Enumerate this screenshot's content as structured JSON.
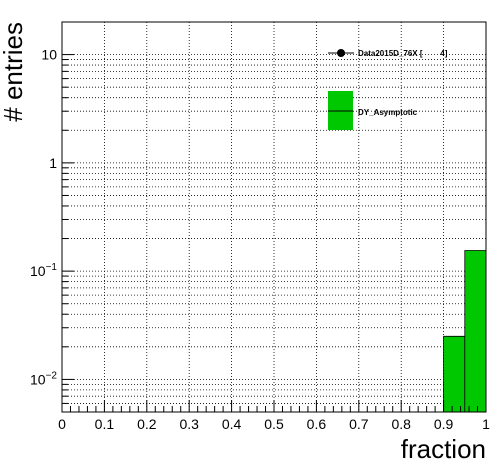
{
  "chart_data": {
    "type": "bar",
    "xlabel": "fraction",
    "ylabel": "# entries",
    "x_scale": "linear",
    "y_scale": "log",
    "xlim": [
      0,
      1
    ],
    "ylim": [
      0.005,
      20
    ],
    "grid": true,
    "x_ticks": [
      "0",
      "0.1",
      "0.2",
      "0.3",
      "0.4",
      "0.5",
      "0.6",
      "0.7",
      "0.8",
      "0.9",
      "1"
    ],
    "y_ticks": [
      {
        "value": 0.01,
        "base": "10",
        "exp": "−2"
      },
      {
        "value": 0.1,
        "base": "10",
        "exp": "−1"
      },
      {
        "value": 1,
        "label": "1"
      },
      {
        "value": 10,
        "label": "10"
      }
    ],
    "series": [
      {
        "name": "DY_Asymptotic",
        "kind": "histogram",
        "color": "#00c800",
        "bins": [
          {
            "x0": 0.9,
            "x1": 0.95,
            "value": 0.025
          },
          {
            "x0": 0.95,
            "x1": 1.0,
            "value": 0.155
          }
        ]
      },
      {
        "name": "Data2015D_76X [        4]",
        "kind": "points",
        "color": "#000000",
        "points": []
      }
    ],
    "legend": {
      "position": "top-right",
      "entries": [
        {
          "label": "Data2015D_76X [        4]",
          "marker": "point"
        },
        {
          "label": "DY_Asymptotic",
          "marker": "fill"
        }
      ]
    }
  }
}
